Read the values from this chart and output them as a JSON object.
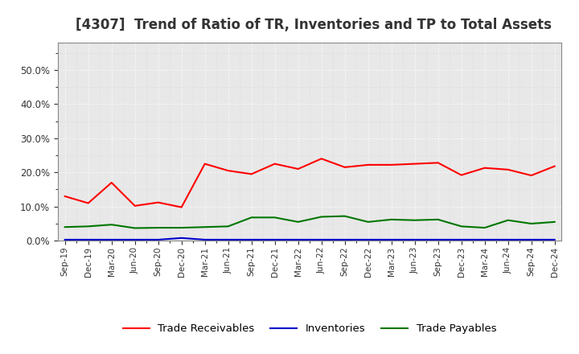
{
  "title": "[4307]  Trend of Ratio of TR, Inventories and TP to Total Assets",
  "x_labels": [
    "Sep-19",
    "Dec-19",
    "Mar-20",
    "Jun-20",
    "Sep-20",
    "Dec-20",
    "Mar-21",
    "Jun-21",
    "Sep-21",
    "Dec-21",
    "Mar-22",
    "Jun-22",
    "Sep-22",
    "Dec-22",
    "Mar-23",
    "Jun-23",
    "Sep-23",
    "Dec-23",
    "Mar-24",
    "Jun-24",
    "Sep-24",
    "Dec-24"
  ],
  "trade_receivables": [
    0.13,
    0.11,
    0.17,
    0.102,
    0.112,
    0.098,
    0.225,
    0.205,
    0.195,
    0.225,
    0.21,
    0.24,
    0.215,
    0.222,
    0.222,
    0.225,
    0.228,
    0.192,
    0.213,
    0.208,
    0.191,
    0.218
  ],
  "inventories": [
    0.003,
    0.003,
    0.003,
    0.003,
    0.003,
    0.008,
    0.003,
    0.003,
    0.003,
    0.003,
    0.003,
    0.003,
    0.003,
    0.003,
    0.003,
    0.003,
    0.003,
    0.003,
    0.003,
    0.003,
    0.003,
    0.003
  ],
  "trade_payables": [
    0.04,
    0.042,
    0.047,
    0.037,
    0.038,
    0.038,
    0.04,
    0.042,
    0.068,
    0.068,
    0.055,
    0.07,
    0.072,
    0.055,
    0.062,
    0.06,
    0.062,
    0.042,
    0.038,
    0.06,
    0.05,
    0.055
  ],
  "tr_color": "#ff0000",
  "inv_color": "#0000cc",
  "tp_color": "#007700",
  "legend_labels": [
    "Trade Receivables",
    "Inventories",
    "Trade Payables"
  ],
  "ylim": [
    0.0,
    0.58
  ],
  "yticks": [
    0.0,
    0.1,
    0.2,
    0.3,
    0.4,
    0.5
  ],
  "background_color": "#ffffff",
  "plot_bg_color": "#f0f0f0",
  "grid_color": "#aaaaaa",
  "title_fontsize": 12,
  "title_color": "#333333"
}
